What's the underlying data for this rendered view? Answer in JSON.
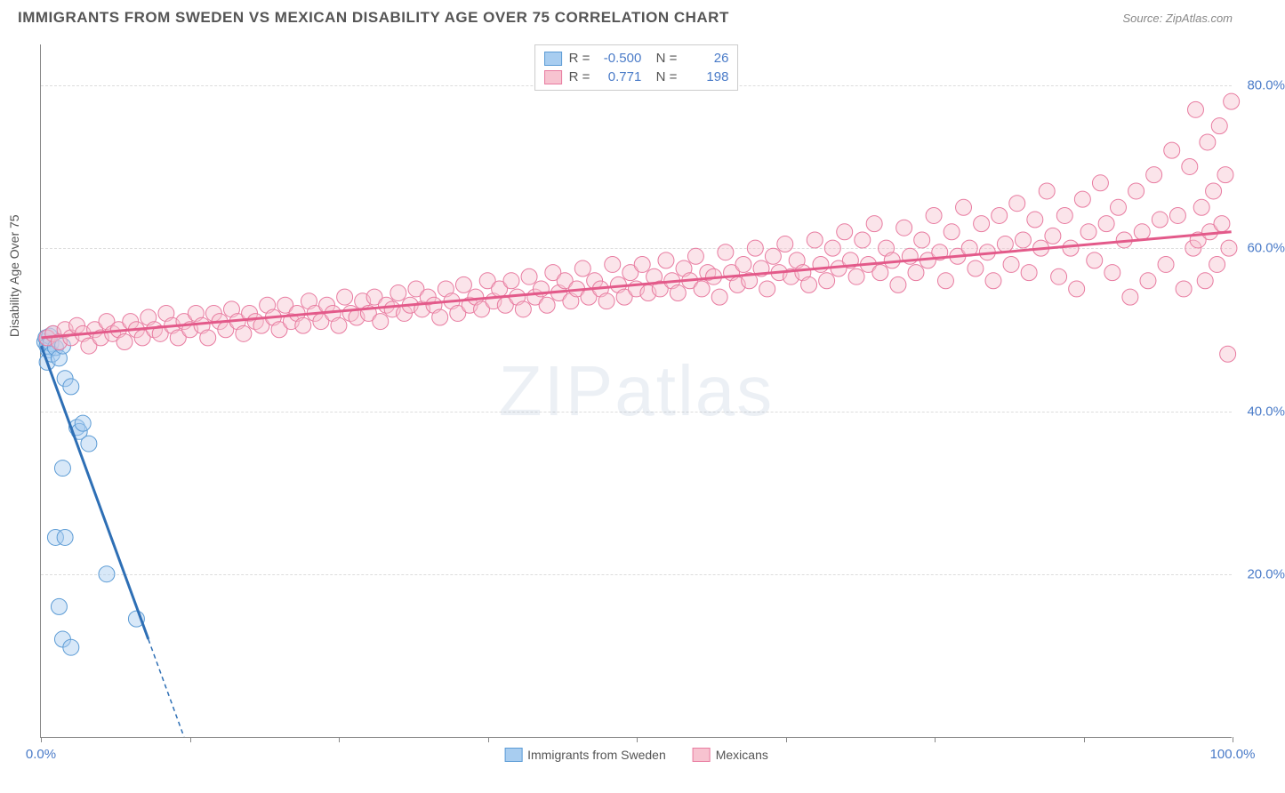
{
  "title": "IMMIGRANTS FROM SWEDEN VS MEXICAN DISABILITY AGE OVER 75 CORRELATION CHART",
  "source": "Source: ZipAtlas.com",
  "watermark": "ZIPatlas",
  "y_axis_title": "Disability Age Over 75",
  "chart": {
    "type": "scatter",
    "xlim": [
      0,
      100
    ],
    "ylim": [
      0,
      85
    ],
    "x_ticks": [
      0,
      12.5,
      25,
      37.5,
      50,
      62.5,
      75,
      87.5,
      100
    ],
    "x_tick_labels": {
      "0": "0.0%",
      "100": "100.0%"
    },
    "y_ticks": [
      20,
      40,
      60,
      80
    ],
    "y_tick_labels": [
      "20.0%",
      "40.0%",
      "60.0%",
      "80.0%"
    ],
    "grid_color": "#dddddd",
    "background_color": "#ffffff",
    "axis_color": "#888888",
    "tick_label_color": "#4a7bc8",
    "marker_radius": 9,
    "marker_opacity": 0.45,
    "series": [
      {
        "name": "Immigrants from Sweden",
        "color_fill": "#a8cdf0",
        "color_stroke": "#5b9bd5",
        "line_color": "#2e6fb5",
        "line_width": 3,
        "R": "-0.500",
        "N": "26",
        "trend": {
          "x1": 0,
          "y1": 48,
          "x2": 12,
          "y2": 0
        },
        "trend_dash_from_x": 9,
        "points": [
          [
            0.3,
            48.5
          ],
          [
            0.4,
            49.0
          ],
          [
            0.5,
            48.0
          ],
          [
            0.6,
            47.5
          ],
          [
            0.7,
            49.2
          ],
          [
            0.8,
            48.3
          ],
          [
            0.5,
            46.0
          ],
          [
            0.9,
            47.0
          ],
          [
            1.0,
            49.5
          ],
          [
            1.2,
            47.8
          ],
          [
            1.5,
            46.5
          ],
          [
            1.8,
            48.0
          ],
          [
            2.0,
            44.0
          ],
          [
            2.5,
            43.0
          ],
          [
            3.0,
            38.0
          ],
          [
            3.2,
            37.5
          ],
          [
            3.5,
            38.5
          ],
          [
            4.0,
            36.0
          ],
          [
            1.8,
            33.0
          ],
          [
            1.2,
            24.5
          ],
          [
            2.0,
            24.5
          ],
          [
            1.5,
            16.0
          ],
          [
            1.8,
            12.0
          ],
          [
            2.5,
            11.0
          ],
          [
            8.0,
            14.5
          ],
          [
            5.5,
            20.0
          ]
        ]
      },
      {
        "name": "Mexicans",
        "color_fill": "#f7c3d0",
        "color_stroke": "#e87ba0",
        "line_color": "#e35a8a",
        "line_width": 3,
        "R": "0.771",
        "N": "198",
        "trend": {
          "x1": 0,
          "y1": 49,
          "x2": 100,
          "y2": 62
        },
        "points": [
          [
            0.5,
            49
          ],
          [
            1,
            49.5
          ],
          [
            1.5,
            48.5
          ],
          [
            2,
            50
          ],
          [
            2.5,
            49
          ],
          [
            3,
            50.5
          ],
          [
            3.5,
            49.5
          ],
          [
            4,
            48
          ],
          [
            4.5,
            50
          ],
          [
            5,
            49
          ],
          [
            5.5,
            51
          ],
          [
            6,
            49.5
          ],
          [
            6.5,
            50
          ],
          [
            7,
            48.5
          ],
          [
            7.5,
            51
          ],
          [
            8,
            50
          ],
          [
            8.5,
            49
          ],
          [
            9,
            51.5
          ],
          [
            9.5,
            50
          ],
          [
            10,
            49.5
          ],
          [
            10.5,
            52
          ],
          [
            11,
            50.5
          ],
          [
            11.5,
            49
          ],
          [
            12,
            51
          ],
          [
            12.5,
            50
          ],
          [
            13,
            52
          ],
          [
            13.5,
            50.5
          ],
          [
            14,
            49
          ],
          [
            14.5,
            52
          ],
          [
            15,
            51
          ],
          [
            15.5,
            50
          ],
          [
            16,
            52.5
          ],
          [
            16.5,
            51
          ],
          [
            17,
            49.5
          ],
          [
            17.5,
            52
          ],
          [
            18,
            51
          ],
          [
            18.5,
            50.5
          ],
          [
            19,
            53
          ],
          [
            19.5,
            51.5
          ],
          [
            20,
            50
          ],
          [
            20.5,
            53
          ],
          [
            21,
            51
          ],
          [
            21.5,
            52
          ],
          [
            22,
            50.5
          ],
          [
            22.5,
            53.5
          ],
          [
            23,
            52
          ],
          [
            23.5,
            51
          ],
          [
            24,
            53
          ],
          [
            24.5,
            52
          ],
          [
            25,
            50.5
          ],
          [
            25.5,
            54
          ],
          [
            26,
            52
          ],
          [
            26.5,
            51.5
          ],
          [
            27,
            53.5
          ],
          [
            27.5,
            52
          ],
          [
            28,
            54
          ],
          [
            28.5,
            51
          ],
          [
            29,
            53
          ],
          [
            29.5,
            52.5
          ],
          [
            30,
            54.5
          ],
          [
            30.5,
            52
          ],
          [
            31,
            53
          ],
          [
            31.5,
            55
          ],
          [
            32,
            52.5
          ],
          [
            32.5,
            54
          ],
          [
            33,
            53
          ],
          [
            33.5,
            51.5
          ],
          [
            34,
            55
          ],
          [
            34.5,
            53.5
          ],
          [
            35,
            52
          ],
          [
            35.5,
            55.5
          ],
          [
            36,
            53
          ],
          [
            36.5,
            54
          ],
          [
            37,
            52.5
          ],
          [
            37.5,
            56
          ],
          [
            38,
            53.5
          ],
          [
            38.5,
            55
          ],
          [
            39,
            53
          ],
          [
            39.5,
            56
          ],
          [
            40,
            54
          ],
          [
            40.5,
            52.5
          ],
          [
            41,
            56.5
          ],
          [
            41.5,
            54
          ],
          [
            42,
            55
          ],
          [
            42.5,
            53
          ],
          [
            43,
            57
          ],
          [
            43.5,
            54.5
          ],
          [
            44,
            56
          ],
          [
            44.5,
            53.5
          ],
          [
            45,
            55
          ],
          [
            45.5,
            57.5
          ],
          [
            46,
            54
          ],
          [
            46.5,
            56
          ],
          [
            47,
            55
          ],
          [
            47.5,
            53.5
          ],
          [
            48,
            58
          ],
          [
            48.5,
            55.5
          ],
          [
            49,
            54
          ],
          [
            49.5,
            57
          ],
          [
            50,
            55
          ],
          [
            50.5,
            58
          ],
          [
            51,
            54.5
          ],
          [
            51.5,
            56.5
          ],
          [
            52,
            55
          ],
          [
            52.5,
            58.5
          ],
          [
            53,
            56
          ],
          [
            53.5,
            54.5
          ],
          [
            54,
            57.5
          ],
          [
            54.5,
            56
          ],
          [
            55,
            59
          ],
          [
            55.5,
            55
          ],
          [
            56,
            57
          ],
          [
            56.5,
            56.5
          ],
          [
            57,
            54
          ],
          [
            57.5,
            59.5
          ],
          [
            58,
            57
          ],
          [
            58.5,
            55.5
          ],
          [
            59,
            58
          ],
          [
            59.5,
            56
          ],
          [
            60,
            60
          ],
          [
            60.5,
            57.5
          ],
          [
            61,
            55
          ],
          [
            61.5,
            59
          ],
          [
            62,
            57
          ],
          [
            62.5,
            60.5
          ],
          [
            63,
            56.5
          ],
          [
            63.5,
            58.5
          ],
          [
            64,
            57
          ],
          [
            64.5,
            55.5
          ],
          [
            65,
            61
          ],
          [
            65.5,
            58
          ],
          [
            66,
            56
          ],
          [
            66.5,
            60
          ],
          [
            67,
            57.5
          ],
          [
            67.5,
            62
          ],
          [
            68,
            58.5
          ],
          [
            68.5,
            56.5
          ],
          [
            69,
            61
          ],
          [
            69.5,
            58
          ],
          [
            70,
            63
          ],
          [
            70.5,
            57
          ],
          [
            71,
            60
          ],
          [
            71.5,
            58.5
          ],
          [
            72,
            55.5
          ],
          [
            72.5,
            62.5
          ],
          [
            73,
            59
          ],
          [
            73.5,
            57
          ],
          [
            74,
            61
          ],
          [
            74.5,
            58.5
          ],
          [
            75,
            64
          ],
          [
            75.5,
            59.5
          ],
          [
            76,
            56
          ],
          [
            76.5,
            62
          ],
          [
            77,
            59
          ],
          [
            77.5,
            65
          ],
          [
            78,
            60
          ],
          [
            78.5,
            57.5
          ],
          [
            79,
            63
          ],
          [
            79.5,
            59.5
          ],
          [
            80,
            56
          ],
          [
            80.5,
            64
          ],
          [
            81,
            60.5
          ],
          [
            81.5,
            58
          ],
          [
            82,
            65.5
          ],
          [
            82.5,
            61
          ],
          [
            83,
            57
          ],
          [
            83.5,
            63.5
          ],
          [
            84,
            60
          ],
          [
            84.5,
            67
          ],
          [
            85,
            61.5
          ],
          [
            85.5,
            56.5
          ],
          [
            86,
            64
          ],
          [
            86.5,
            60
          ],
          [
            87,
            55
          ],
          [
            87.5,
            66
          ],
          [
            88,
            62
          ],
          [
            88.5,
            58.5
          ],
          [
            89,
            68
          ],
          [
            89.5,
            63
          ],
          [
            90,
            57
          ],
          [
            90.5,
            65
          ],
          [
            91,
            61
          ],
          [
            91.5,
            54
          ],
          [
            92,
            67
          ],
          [
            92.5,
            62
          ],
          [
            93,
            56
          ],
          [
            93.5,
            69
          ],
          [
            94,
            63.5
          ],
          [
            94.5,
            58
          ],
          [
            95,
            72
          ],
          [
            95.5,
            64
          ],
          [
            96,
            55
          ],
          [
            96.5,
            70
          ],
          [
            96.8,
            60
          ],
          [
            97,
            77
          ],
          [
            97.2,
            61
          ],
          [
            97.5,
            65
          ],
          [
            97.8,
            56
          ],
          [
            98,
            73
          ],
          [
            98.2,
            62
          ],
          [
            98.5,
            67
          ],
          [
            98.8,
            58
          ],
          [
            99,
            75
          ],
          [
            99.2,
            63
          ],
          [
            99.5,
            69
          ],
          [
            99.7,
            47
          ],
          [
            99.8,
            60
          ],
          [
            100,
            78
          ]
        ]
      }
    ]
  },
  "legend_bottom": [
    {
      "label": "Immigrants from Sweden",
      "fill": "#a8cdf0",
      "stroke": "#5b9bd5"
    },
    {
      "label": "Mexicans",
      "fill": "#f7c3d0",
      "stroke": "#e87ba0"
    }
  ]
}
